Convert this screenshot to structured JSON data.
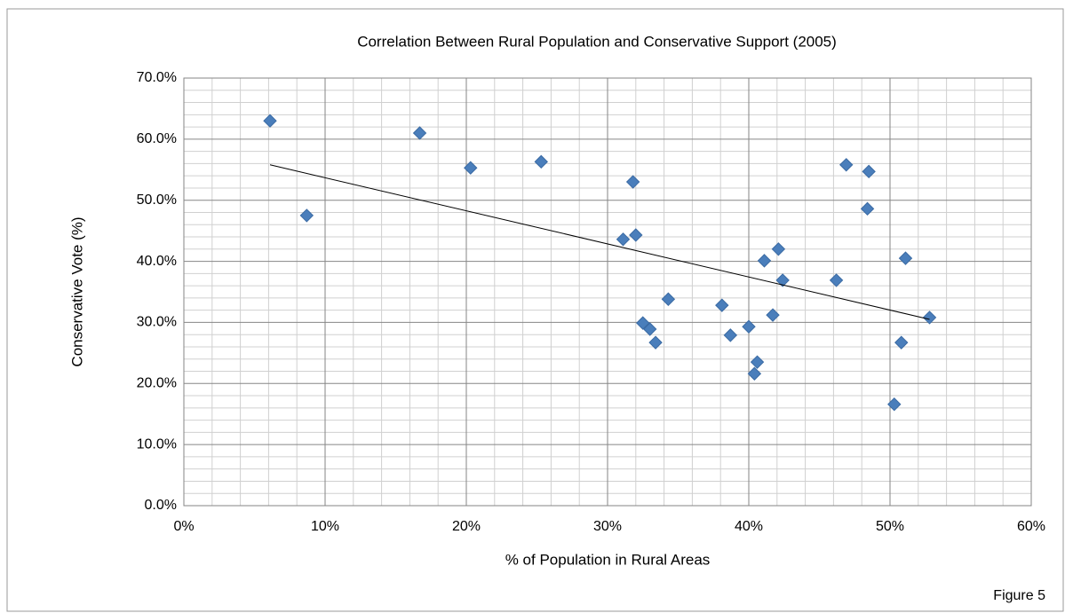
{
  "chart_data": {
    "type": "scatter",
    "title": "Correlation Between Rural Population and Conservative Support (2005)",
    "x_label": "% of Population in Rural Areas",
    "y_label": "Conservative Vote (%)",
    "x": [
      6.1,
      8.7,
      16.7,
      20.3,
      25.3,
      31.8,
      31.1,
      32.0,
      32.5,
      33.0,
      33.4,
      34.3,
      38.1,
      38.7,
      40.0,
      40.6,
      40.4,
      41.1,
      41.7,
      42.1,
      42.4,
      46.2,
      46.9,
      48.5,
      48.4,
      50.3,
      50.8,
      51.1,
      52.8
    ],
    "values": [
      63.0,
      47.5,
      61.0,
      55.3,
      56.3,
      53.0,
      43.6,
      44.3,
      29.9,
      28.9,
      26.7,
      33.8,
      32.8,
      27.9,
      29.3,
      23.5,
      21.6,
      40.1,
      31.2,
      42.0,
      36.9,
      36.9,
      55.8,
      54.7,
      48.6,
      16.6,
      26.7,
      40.5,
      30.8
    ],
    "color": "#4a7ebb",
    "trendline": {
      "x": [
        6.1,
        52.8
      ],
      "values": [
        55.8,
        30.5
      ],
      "color": "#000000"
    },
    "xlim": [
      0,
      60
    ],
    "ylim": [
      0,
      70
    ],
    "xticks": [
      {
        "value": 0,
        "label": "0%"
      },
      {
        "value": 10,
        "label": "10%"
      },
      {
        "value": 20,
        "label": "20%"
      },
      {
        "value": 30,
        "label": "30%"
      },
      {
        "value": 40,
        "label": "40%"
      },
      {
        "value": 50,
        "label": "50%"
      },
      {
        "value": 60,
        "label": "60%"
      }
    ],
    "yticks": [
      {
        "value": 0,
        "label": "0.0%"
      },
      {
        "value": 10,
        "label": "10.0%"
      },
      {
        "value": 20,
        "label": "20.0%"
      },
      {
        "value": 30,
        "label": "30.0%"
      },
      {
        "value": 40,
        "label": "40.0%"
      },
      {
        "value": 50,
        "label": "50.0%"
      },
      {
        "value": 60,
        "label": "60.0%"
      },
      {
        "value": 70,
        "label": "70.0%"
      }
    ],
    "grid": true
  },
  "caption": "Figure 5"
}
